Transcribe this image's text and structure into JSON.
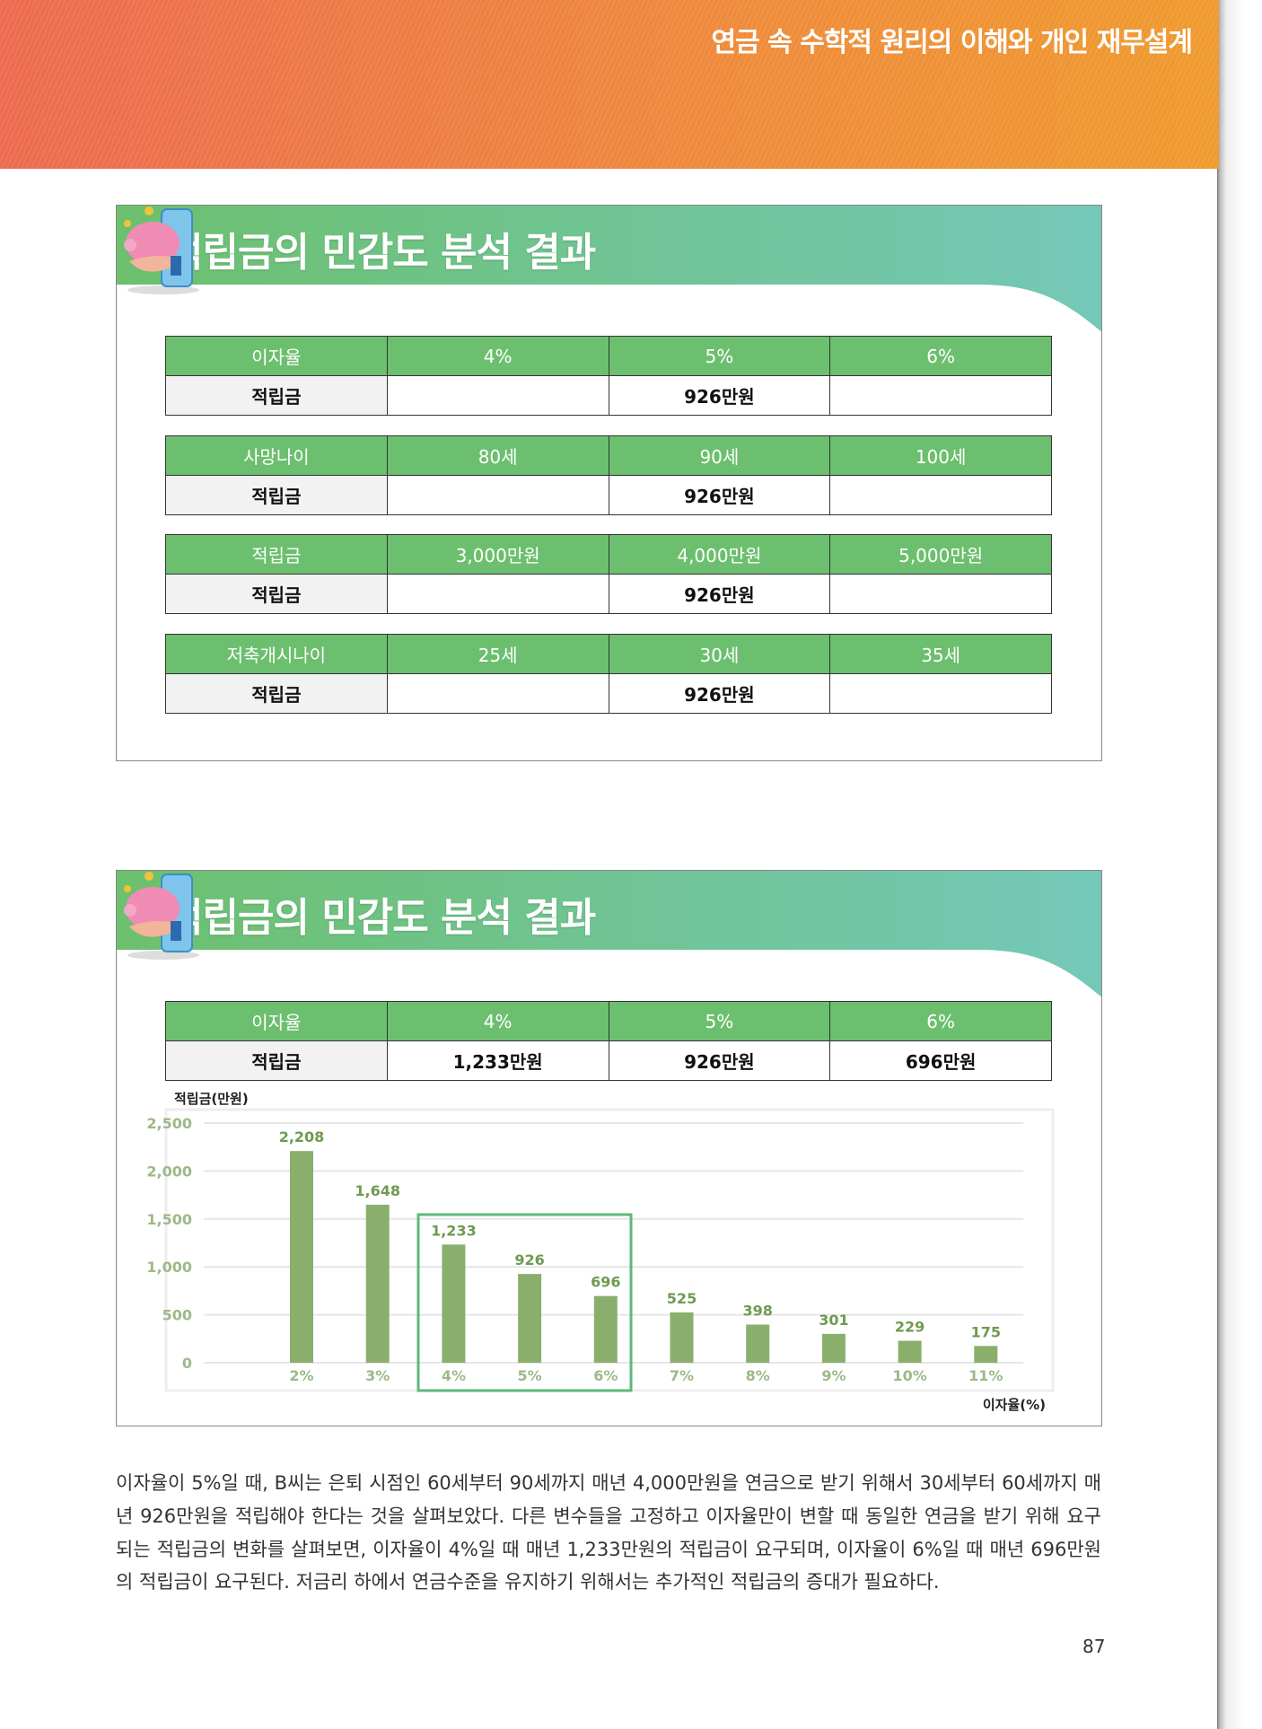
{
  "header": {
    "title": "연금 속 수학적 원리의 이해와 개인 재무설계"
  },
  "section1": {
    "title": "적립금의 민감도 분석 결과",
    "tables": [
      {
        "header": [
          "이자율",
          "4%",
          "5%",
          "6%"
        ],
        "row": [
          "적립금",
          "",
          "926만원",
          ""
        ]
      },
      {
        "header": [
          "사망나이",
          "80세",
          "90세",
          "100세"
        ],
        "row": [
          "적립금",
          "",
          "926만원",
          ""
        ]
      },
      {
        "header": [
          "적립금",
          "3,000만원",
          "4,000만원",
          "5,000만원"
        ],
        "row": [
          "적립금",
          "",
          "926만원",
          ""
        ]
      },
      {
        "header": [
          "저축개시나이",
          "25세",
          "30세",
          "35세"
        ],
        "row": [
          "적립금",
          "",
          "926만원",
          ""
        ]
      }
    ]
  },
  "section2": {
    "title": "적립금의 민감도 분석 결과",
    "table": {
      "header": [
        "이자율",
        "4%",
        "5%",
        "6%"
      ],
      "row": [
        "적립금",
        "1,233만원",
        "926만원",
        "696만원"
      ]
    }
  },
  "chart_data": {
    "type": "bar",
    "ylabel": "적립금(만원)",
    "xlabel": "이자율(%)",
    "categories": [
      "2%",
      "3%",
      "4%",
      "5%",
      "6%",
      "7%",
      "8%",
      "9%",
      "10%",
      "11%"
    ],
    "values": [
      2208,
      1648,
      1233,
      926,
      696,
      525,
      398,
      301,
      229,
      175
    ],
    "data_labels": [
      "2,208",
      "1,648",
      "1,233",
      "926",
      "696",
      "525",
      "398",
      "301",
      "229",
      "175"
    ],
    "ylim": [
      0,
      2500
    ],
    "yticks": [
      "0",
      "500",
      "1,000",
      "1,500",
      "2,000",
      "2,500"
    ],
    "grid": true,
    "highlight": [
      "4%",
      "5%",
      "6%"
    ],
    "colors": {
      "bar": "#8aaf6c",
      "label": "#6f9a52",
      "highlight": "#5cb87a"
    }
  },
  "paragraph": "이자율이 5%일 때, B씨는 은퇴 시점인 60세부터 90세까지 매년 4,000만원을 연금으로 받기 위해서 30세부터 60세까지 매년 926만원을 적립해야 한다는 것을 살펴보았다. 다른 변수들을 고정하고 이자율만이 변할 때 동일한 연금을 받기 위해 요구되는 적립금의 변화를 살펴보면, 이자율이 4%일 때 매년 1,233만원의 적립금이 요구되며, 이자율이 6%일 때 매년 696만원의 적립금이 요구된다. 저금리 하에서 연금수준을 유지하기 위해서는 추가적인 적립금의 증대가 필요하다.",
  "page_number": "87"
}
